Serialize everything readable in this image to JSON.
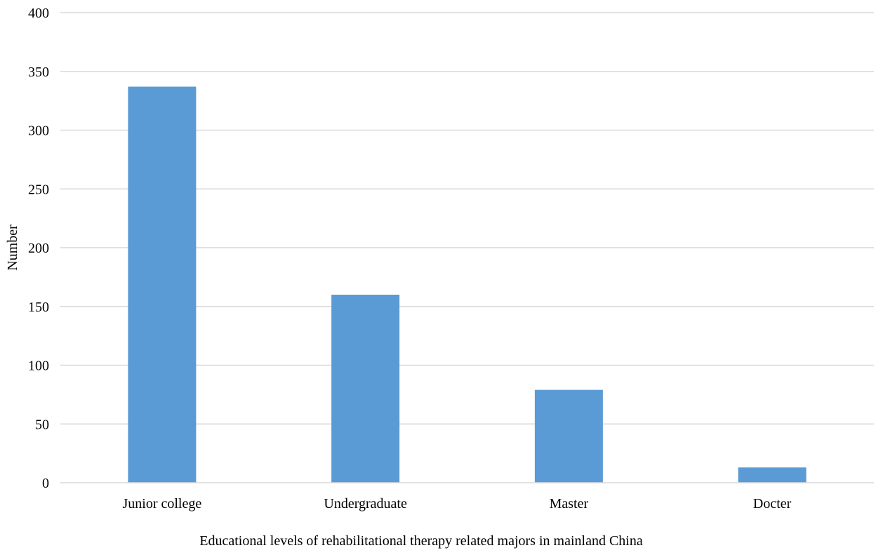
{
  "chart_data": {
    "type": "bar",
    "categories": [
      "Junior college",
      "Undergraduate",
      "Master",
      "Docter"
    ],
    "values": [
      337,
      160,
      79,
      13
    ],
    "xlabel": "Educational levels of rehabilitational therapy related majors in mainland China",
    "ylabel": "Number",
    "ylim": [
      0,
      400
    ],
    "yticks": [
      0,
      50,
      100,
      150,
      200,
      250,
      300,
      350,
      400
    ],
    "grid": true,
    "legend": "none",
    "bar_color": "#5b9bd5"
  }
}
